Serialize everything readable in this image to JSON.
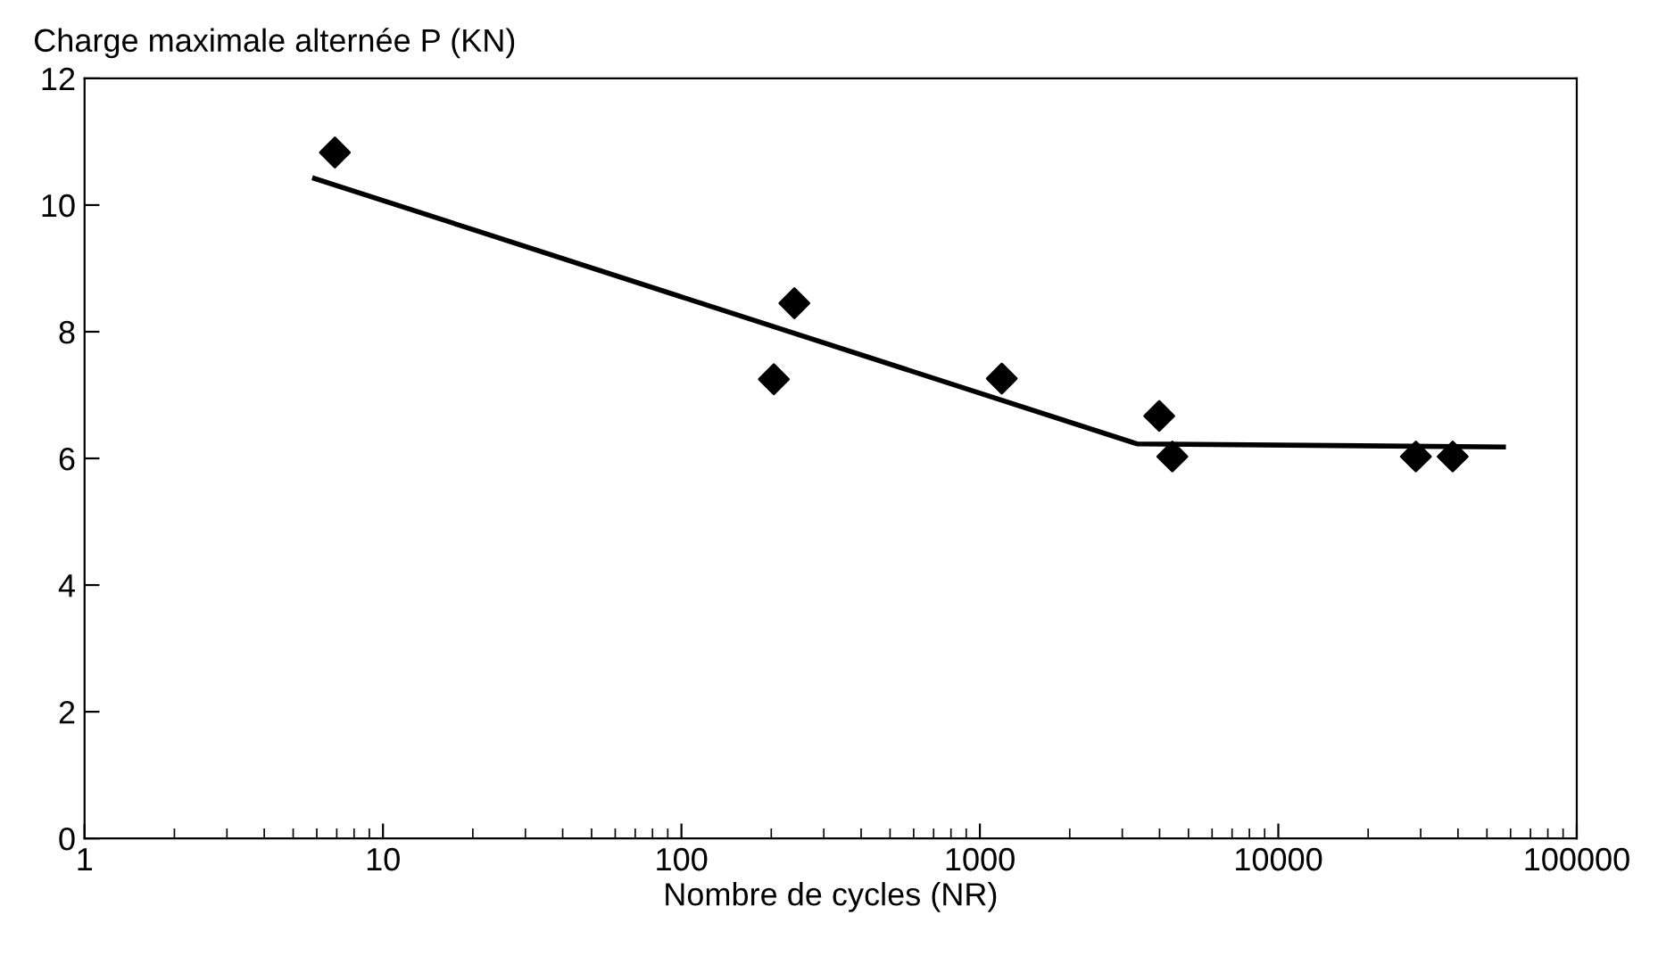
{
  "chart_data": {
    "type": "scatter",
    "ylabel": "Charge maximale alternée P (KN)",
    "xlabel": "Nombre de cycles (NR)",
    "log": "x",
    "marker": "diamond",
    "grid": false,
    "legend": false,
    "xlim": [
      1,
      100000
    ],
    "xticks": [
      1,
      10,
      100,
      1000,
      10000,
      100000
    ],
    "ylim": [
      0,
      12
    ],
    "yticks": [
      0,
      2,
      4,
      6,
      8,
      10,
      12
    ],
    "series": [
      {
        "color": "#000000",
        "x": [
          6.9,
          204,
          239,
          1184,
          3990,
          4414,
          28900,
          38400
        ],
        "values": [
          10.83,
          7.25,
          8.45,
          7.26,
          6.67,
          6.03,
          6.03,
          6.03
        ]
      },
      {
        "type": "line",
        "color": "#000000",
        "marker": "none",
        "x": [
          5.9,
          3360,
          56800
        ],
        "values": [
          10.42,
          6.23,
          6.18
        ]
      }
    ]
  }
}
